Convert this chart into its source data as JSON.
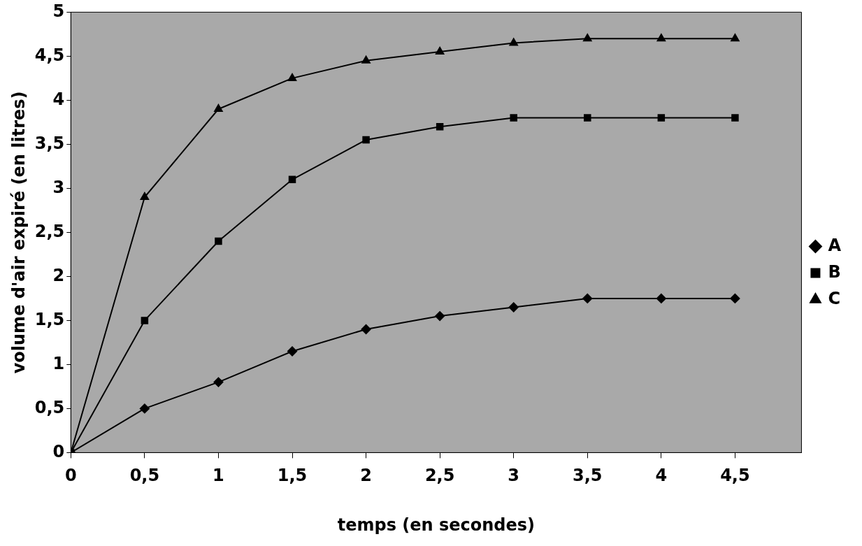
{
  "chart_data": {
    "type": "line",
    "xlabel": "temps (en secondes)",
    "ylabel": "volume d'air expiré (en litres)",
    "x": [
      0,
      0.5,
      1,
      1.5,
      2,
      2.5,
      3,
      3.5,
      4,
      4.5
    ],
    "series": [
      {
        "name": "A",
        "color": "#000000",
        "marker": "diamond",
        "values": [
          0,
          0.5,
          0.8,
          1.15,
          1.4,
          1.55,
          1.65,
          1.75,
          1.75,
          1.75
        ]
      },
      {
        "name": "B",
        "color": "#000000",
        "marker": "square",
        "values": [
          0,
          1.5,
          2.4,
          3.1,
          3.55,
          3.7,
          3.8,
          3.8,
          3.8,
          3.8
        ]
      },
      {
        "name": "C",
        "color": "#000000",
        "marker": "triangle",
        "values": [
          0,
          2.9,
          3.9,
          4.25,
          4.45,
          4.55,
          4.65,
          4.7,
          4.7,
          4.7
        ]
      }
    ],
    "xlim": [
      0,
      4.95
    ],
    "ylim": [
      0,
      5
    ],
    "xticks": [
      0,
      {
        "value": 0.5,
        "label": "0,5"
      },
      1,
      {
        "value": 1.5,
        "label": "1,5"
      },
      2,
      {
        "value": 2.5,
        "label": "2,5"
      },
      3,
      {
        "value": 3.5,
        "label": "3,5"
      },
      4,
      {
        "value": 4.5,
        "label": "4,5"
      }
    ],
    "yticks": [
      0,
      {
        "value": 0.5,
        "label": "0,5"
      },
      1,
      {
        "value": 1.5,
        "label": "1,5"
      },
      2,
      {
        "value": 2.5,
        "label": "2,5"
      },
      3,
      {
        "value": 3.5,
        "label": "3,5"
      },
      4,
      {
        "value": 4.5,
        "label": "4,5"
      },
      5
    ],
    "grid": false,
    "legend": "right",
    "line_style": "solid"
  }
}
